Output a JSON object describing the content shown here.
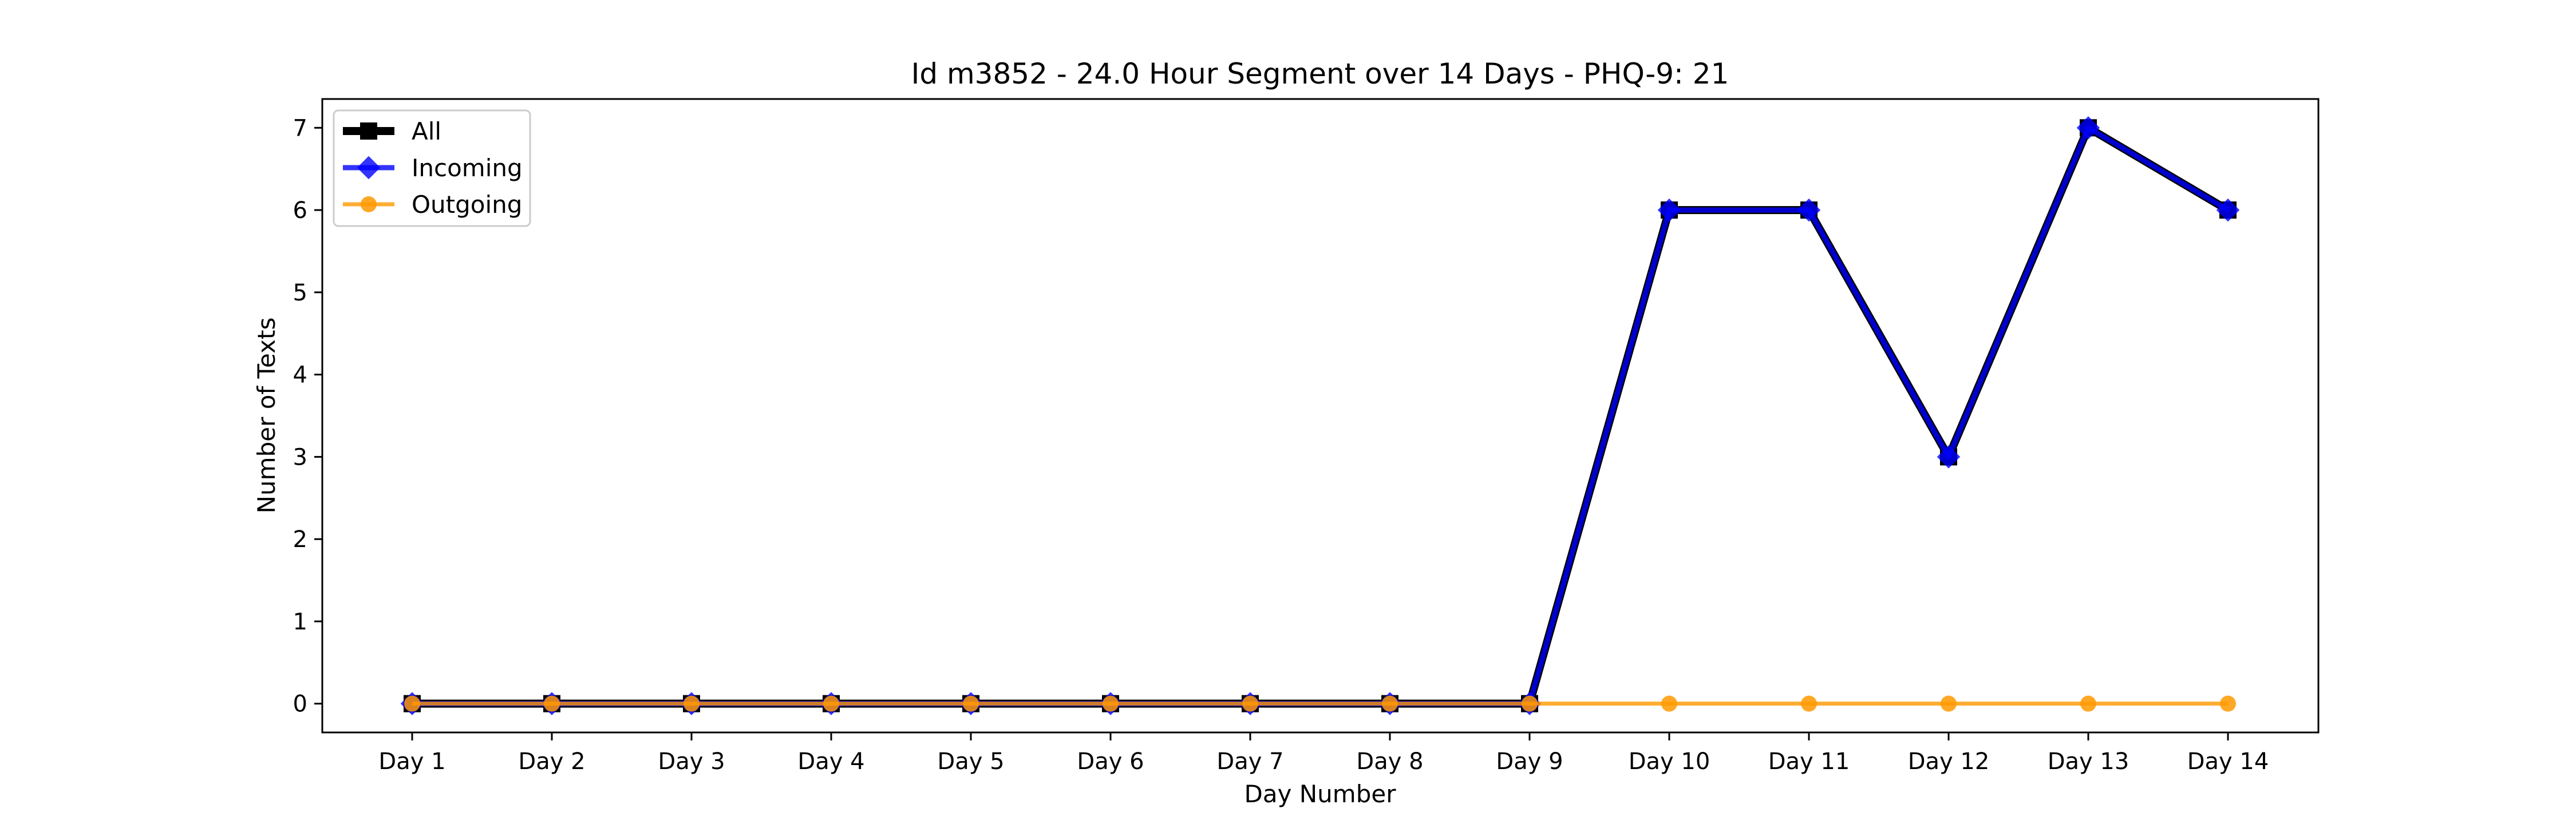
{
  "chart_data": {
    "type": "line",
    "title": "Id m3852 - 24.0 Hour Segment over 14 Days - PHQ-9: 21",
    "xlabel": "Day Number",
    "ylabel": "Number of Texts",
    "categories": [
      "Day 1",
      "Day 2",
      "Day 3",
      "Day 4",
      "Day 5",
      "Day 6",
      "Day 7",
      "Day 8",
      "Day 9",
      "Day 10",
      "Day 11",
      "Day 12",
      "Day 13",
      "Day 14"
    ],
    "ylim": [
      -0.35,
      7.35
    ],
    "yticks": [
      0,
      1,
      2,
      3,
      4,
      5,
      6,
      7
    ],
    "grid": false,
    "legend_placement": "top-left",
    "series": [
      {
        "name": "All",
        "values": [
          0,
          0,
          0,
          0,
          0,
          0,
          0,
          0,
          0,
          6,
          6,
          3,
          7,
          6
        ],
        "color": "#000000",
        "marker": "square"
      },
      {
        "name": "Incoming",
        "values": [
          0,
          0,
          0,
          0,
          0,
          0,
          0,
          0,
          0,
          6,
          6,
          3,
          7,
          6
        ],
        "color": "#0000ff",
        "marker": "diamond"
      },
      {
        "name": "Outgoing",
        "values": [
          0,
          0,
          0,
          0,
          0,
          0,
          0,
          0,
          0,
          0,
          0,
          0,
          0,
          0
        ],
        "color": "#ff9900",
        "marker": "circle"
      }
    ]
  }
}
